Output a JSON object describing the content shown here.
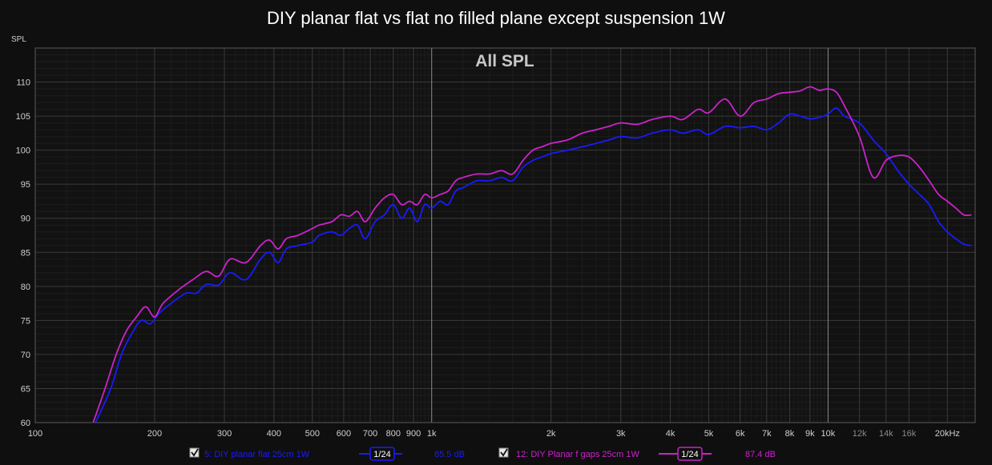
{
  "chart_data": {
    "type": "line",
    "title": "DIY planar flat vs flat no filled plane except suspension 1W",
    "subtitle": "All SPL",
    "ylabel": "SPL",
    "xlabel": "",
    "x_scale": "log",
    "xlim": [
      100,
      23500
    ],
    "ylim": [
      60,
      115
    ],
    "grid": true,
    "y_ticks": [
      60,
      65,
      70,
      75,
      80,
      85,
      90,
      95,
      100,
      105,
      110
    ],
    "x_ticks": [
      {
        "v": 100,
        "t": "100",
        "major": true
      },
      {
        "v": 200,
        "t": "200",
        "major": true
      },
      {
        "v": 300,
        "t": "300",
        "major": true
      },
      {
        "v": 400,
        "t": "400",
        "major": true
      },
      {
        "v": 500,
        "t": "500",
        "major": true
      },
      {
        "v": 600,
        "t": "600",
        "major": true
      },
      {
        "v": 700,
        "t": "700",
        "major": true
      },
      {
        "v": 800,
        "t": "800",
        "major": true
      },
      {
        "v": 900,
        "t": "900",
        "major": true
      },
      {
        "v": 1000,
        "t": "1k",
        "major": true
      },
      {
        "v": 2000,
        "t": "2k",
        "major": true
      },
      {
        "v": 3000,
        "t": "3k",
        "major": true
      },
      {
        "v": 4000,
        "t": "4k",
        "major": true
      },
      {
        "v": 5000,
        "t": "5k",
        "major": true
      },
      {
        "v": 6000,
        "t": "6k",
        "major": true
      },
      {
        "v": 7000,
        "t": "7k",
        "major": true
      },
      {
        "v": 8000,
        "t": "8k",
        "major": true
      },
      {
        "v": 9000,
        "t": "9k",
        "major": true
      },
      {
        "v": 10000,
        "t": "10k",
        "major": true
      },
      {
        "v": 12000,
        "t": "12k",
        "major": false
      },
      {
        "v": 14000,
        "t": "14k",
        "major": false
      },
      {
        "v": 16000,
        "t": "16k",
        "major": false
      },
      {
        "v": 20000,
        "t": "20kHz",
        "major": true
      }
    ],
    "series": [
      {
        "color": "#1a1aff",
        "points": [
          [
            142,
            60
          ],
          [
            155,
            65
          ],
          [
            165,
            70
          ],
          [
            175,
            73
          ],
          [
            185,
            75
          ],
          [
            195,
            74.5
          ],
          [
            205,
            76
          ],
          [
            220,
            77.5
          ],
          [
            240,
            79
          ],
          [
            255,
            79
          ],
          [
            270,
            80.3
          ],
          [
            290,
            80.2
          ],
          [
            310,
            82
          ],
          [
            340,
            81
          ],
          [
            370,
            84
          ],
          [
            390,
            85
          ],
          [
            410,
            83.5
          ],
          [
            430,
            85.5
          ],
          [
            460,
            86
          ],
          [
            500,
            86.5
          ],
          [
            520,
            87.5
          ],
          [
            560,
            88
          ],
          [
            590,
            87.5
          ],
          [
            620,
            88.5
          ],
          [
            650,
            89
          ],
          [
            680,
            87
          ],
          [
            720,
            89.5
          ],
          [
            760,
            90.5
          ],
          [
            800,
            92
          ],
          [
            840,
            90
          ],
          [
            880,
            91.5
          ],
          [
            920,
            89.5
          ],
          [
            960,
            92
          ],
          [
            1000,
            91.5
          ],
          [
            1050,
            92.5
          ],
          [
            1100,
            92
          ],
          [
            1150,
            94
          ],
          [
            1200,
            94.5
          ],
          [
            1300,
            95.5
          ],
          [
            1400,
            95.5
          ],
          [
            1500,
            96
          ],
          [
            1600,
            95.5
          ],
          [
            1700,
            97.5
          ],
          [
            1800,
            98.5
          ],
          [
            1900,
            99
          ],
          [
            2000,
            99.5
          ],
          [
            2200,
            100
          ],
          [
            2400,
            100.5
          ],
          [
            2600,
            101
          ],
          [
            2800,
            101.5
          ],
          [
            3000,
            102
          ],
          [
            3300,
            101.8
          ],
          [
            3600,
            102.5
          ],
          [
            4000,
            103
          ],
          [
            4300,
            102.5
          ],
          [
            4700,
            103
          ],
          [
            5000,
            102.3
          ],
          [
            5500,
            103.5
          ],
          [
            6000,
            103.3
          ],
          [
            6500,
            103.5
          ],
          [
            7000,
            103
          ],
          [
            7500,
            104
          ],
          [
            8000,
            105.3
          ],
          [
            8500,
            105
          ],
          [
            9000,
            104.6
          ],
          [
            9500,
            104.8
          ],
          [
            10000,
            105.3
          ],
          [
            10500,
            106.2
          ],
          [
            11000,
            105
          ],
          [
            12000,
            104
          ],
          [
            13000,
            101.5
          ],
          [
            14000,
            99.5
          ],
          [
            15000,
            97
          ],
          [
            16000,
            95
          ],
          [
            17000,
            93.5
          ],
          [
            18000,
            92
          ],
          [
            19000,
            89.5
          ],
          [
            20000,
            88
          ],
          [
            21000,
            87
          ],
          [
            22000,
            86.2
          ],
          [
            23000,
            86
          ]
        ]
      },
      {
        "color": "#cc22cc",
        "points": [
          [
            140,
            60
          ],
          [
            150,
            65
          ],
          [
            160,
            70
          ],
          [
            170,
            73.5
          ],
          [
            180,
            75.5
          ],
          [
            190,
            77
          ],
          [
            200,
            75.5
          ],
          [
            210,
            77.5
          ],
          [
            230,
            79.5
          ],
          [
            250,
            81
          ],
          [
            270,
            82.2
          ],
          [
            290,
            81.5
          ],
          [
            310,
            84
          ],
          [
            340,
            83.5
          ],
          [
            370,
            86
          ],
          [
            390,
            86.8
          ],
          [
            410,
            85.5
          ],
          [
            430,
            87
          ],
          [
            460,
            87.5
          ],
          [
            500,
            88.5
          ],
          [
            520,
            89
          ],
          [
            560,
            89.5
          ],
          [
            590,
            90.5
          ],
          [
            620,
            90.3
          ],
          [
            650,
            91
          ],
          [
            680,
            89.5
          ],
          [
            720,
            91.5
          ],
          [
            760,
            93
          ],
          [
            800,
            93.5
          ],
          [
            840,
            92
          ],
          [
            880,
            92.5
          ],
          [
            920,
            92
          ],
          [
            960,
            93.5
          ],
          [
            1000,
            93
          ],
          [
            1050,
            93.5
          ],
          [
            1100,
            94
          ],
          [
            1150,
            95.5
          ],
          [
            1200,
            96
          ],
          [
            1300,
            96.5
          ],
          [
            1400,
            96.5
          ],
          [
            1500,
            97
          ],
          [
            1600,
            96.5
          ],
          [
            1700,
            98.5
          ],
          [
            1800,
            100
          ],
          [
            1900,
            100.5
          ],
          [
            2000,
            101
          ],
          [
            2200,
            101.5
          ],
          [
            2400,
            102.5
          ],
          [
            2600,
            103
          ],
          [
            2800,
            103.5
          ],
          [
            3000,
            104
          ],
          [
            3300,
            103.8
          ],
          [
            3600,
            104.5
          ],
          [
            4000,
            105
          ],
          [
            4300,
            104.5
          ],
          [
            4700,
            106
          ],
          [
            5000,
            105.5
          ],
          [
            5500,
            107.5
          ],
          [
            6000,
            105
          ],
          [
            6500,
            107
          ],
          [
            7000,
            107.5
          ],
          [
            7500,
            108.3
          ],
          [
            8000,
            108.5
          ],
          [
            8500,
            108.7
          ],
          [
            9000,
            109.3
          ],
          [
            9500,
            108.8
          ],
          [
            10000,
            109
          ],
          [
            10500,
            108.5
          ],
          [
            11000,
            106.5
          ],
          [
            12000,
            102
          ],
          [
            13000,
            96
          ],
          [
            14000,
            98.5
          ],
          [
            15000,
            99.2
          ],
          [
            16000,
            99
          ],
          [
            17000,
            97.5
          ],
          [
            18000,
            95.5
          ],
          [
            19000,
            93.5
          ],
          [
            20000,
            92.5
          ],
          [
            21000,
            91.5
          ],
          [
            22000,
            90.5
          ],
          [
            23000,
            90.5
          ]
        ]
      }
    ]
  },
  "legend": {
    "items": [
      {
        "label": "5: DIY planar flat 25cm 1W",
        "smoothing": "1/24",
        "value": "85.5 dB",
        "color": "#1a1aff",
        "checked": true
      },
      {
        "label": "12: DIY Planar f gaps 25cm 1W",
        "smoothing": "1/24",
        "value": "87.4 dB",
        "color": "#cc22cc",
        "checked": true
      }
    ]
  }
}
